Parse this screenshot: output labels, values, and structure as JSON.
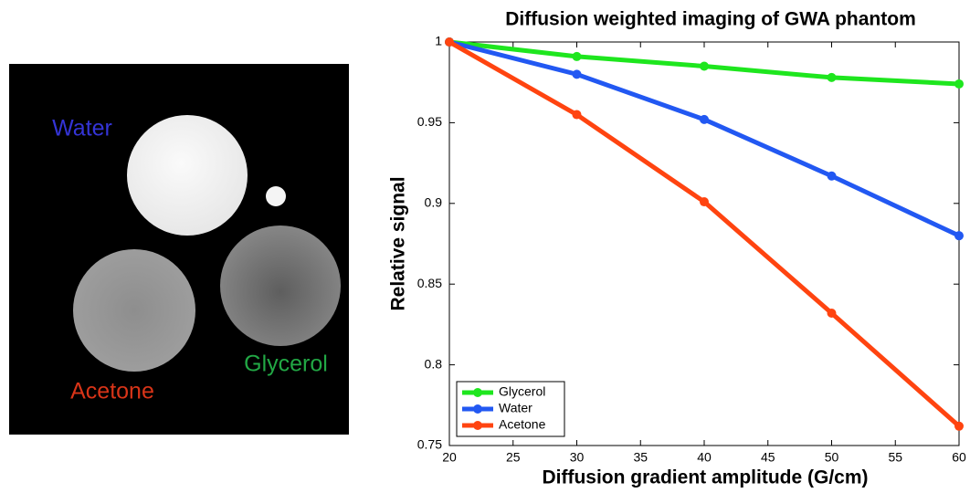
{
  "image": {
    "labels": [
      {
        "text": "Water",
        "color": "#3434d6"
      },
      {
        "text": "Glycerol",
        "color": "#22a845"
      },
      {
        "text": "Acetone",
        "color": "#d83418"
      }
    ]
  },
  "chart_data": {
    "type": "line",
    "title": "Diffusion weighted imaging of GWA phantom",
    "x_label": "Diffusion gradient amplitude (G/cm)",
    "y_label": "Relative signal",
    "x": [
      20,
      30,
      40,
      50,
      60
    ],
    "series": [
      {
        "name": "Glycerol",
        "color": "#1ee61e",
        "values": [
          1,
          0.991,
          0.985,
          0.978,
          0.974
        ]
      },
      {
        "name": "Water",
        "color": "#2258f2",
        "values": [
          1,
          0.98,
          0.952,
          0.917,
          0.88
        ]
      },
      {
        "name": "Acetone",
        "color": "#ff4410",
        "values": [
          1,
          0.955,
          0.901,
          0.832,
          0.762
        ]
      }
    ],
    "xlim": [
      20,
      60
    ],
    "xticks": [
      20,
      25,
      30,
      35,
      40,
      45,
      50,
      55,
      60
    ],
    "ylim": [
      0.75,
      1
    ],
    "yticks": [
      0.75,
      0.8,
      0.85,
      0.9,
      0.95,
      1
    ],
    "legend": "lower left"
  }
}
